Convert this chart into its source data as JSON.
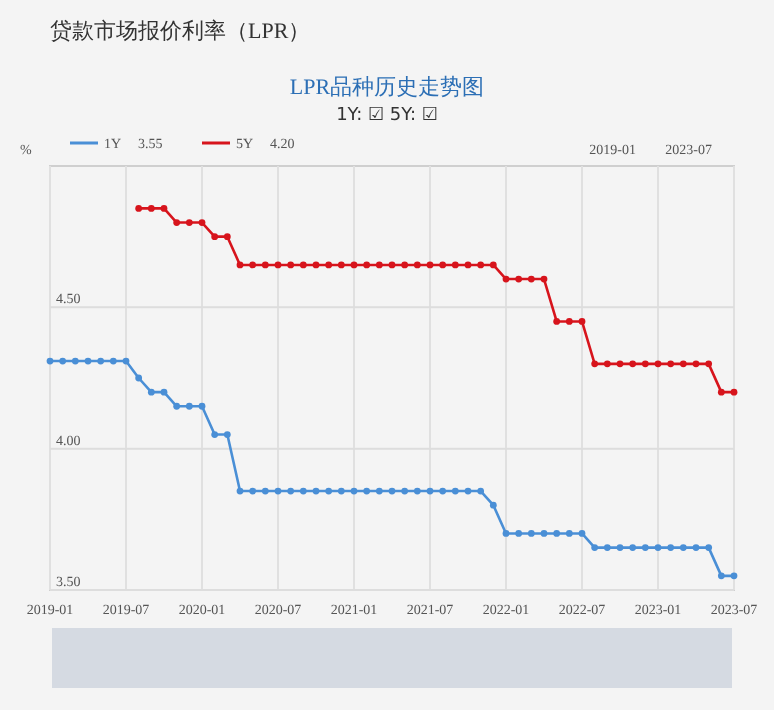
{
  "chart_data": {
    "type": "line",
    "title": "贷款市场报价利率（LPR）",
    "subtitle": "LPR品种历史走势图",
    "ylabel": "%",
    "annotations": [
      "1Y: ☑ 5Y: ☑",
      "3.55",
      "4.20",
      "2019-01",
      "2023-07"
    ],
    "x": [
      "2019-01",
      "2019-02",
      "2019-03",
      "2019-04",
      "2019-05",
      "2019-06",
      "2019-07",
      "2019-08",
      "2019-09",
      "2019-10",
      "2019-11",
      "2019-12",
      "2020-01",
      "2020-02",
      "2020-03",
      "2020-04",
      "2020-05",
      "2020-06",
      "2020-07",
      "2020-08",
      "2020-09",
      "2020-10",
      "2020-11",
      "2020-12",
      "2021-01",
      "2021-02",
      "2021-03",
      "2021-04",
      "2021-05",
      "2021-06",
      "2021-07",
      "2021-08",
      "2021-09",
      "2021-10",
      "2021-11",
      "2021-12",
      "2022-01",
      "2022-02",
      "2022-03",
      "2022-04",
      "2022-05",
      "2022-06",
      "2022-07",
      "2022-08",
      "2022-09",
      "2022-10",
      "2022-11",
      "2022-12",
      "2023-01",
      "2023-02",
      "2023-03",
      "2023-04",
      "2023-05",
      "2023-06",
      "2023-07"
    ],
    "series": [
      {
        "name": "1Y",
        "color": "#4a8fd6",
        "values": [
          4.31,
          4.31,
          4.31,
          4.31,
          4.31,
          4.31,
          4.31,
          4.25,
          4.2,
          4.2,
          4.15,
          4.15,
          4.15,
          4.05,
          4.05,
          3.85,
          3.85,
          3.85,
          3.85,
          3.85,
          3.85,
          3.85,
          3.85,
          3.85,
          3.85,
          3.85,
          3.85,
          3.85,
          3.85,
          3.85,
          3.85,
          3.85,
          3.85,
          3.85,
          3.85,
          3.8,
          3.7,
          3.7,
          3.7,
          3.7,
          3.7,
          3.7,
          3.7,
          3.65,
          3.65,
          3.65,
          3.65,
          3.65,
          3.65,
          3.65,
          3.65,
          3.65,
          3.65,
          3.55,
          3.55
        ]
      },
      {
        "name": "5Y",
        "color": "#d7141c",
        "values": [
          null,
          null,
          null,
          null,
          null,
          null,
          null,
          4.85,
          4.85,
          4.85,
          4.8,
          4.8,
          4.8,
          4.75,
          4.75,
          4.65,
          4.65,
          4.65,
          4.65,
          4.65,
          4.65,
          4.65,
          4.65,
          4.65,
          4.65,
          4.65,
          4.65,
          4.65,
          4.65,
          4.65,
          4.65,
          4.65,
          4.65,
          4.65,
          4.65,
          4.65,
          4.6,
          4.6,
          4.6,
          4.6,
          4.45,
          4.45,
          4.45,
          4.3,
          4.3,
          4.3,
          4.3,
          4.3,
          4.3,
          4.3,
          4.3,
          4.3,
          4.3,
          4.2,
          4.2
        ]
      }
    ],
    "xlim": [
      "2019-01",
      "2023-07"
    ],
    "xticks": [
      "2019-01",
      "2019-07",
      "2020-01",
      "2020-07",
      "2021-01",
      "2021-07",
      "2022-01",
      "2022-07",
      "2023-01",
      "2023-07"
    ],
    "ylim": [
      3.5,
      5.0
    ],
    "yticks": [
      {
        "value": 3.5,
        "label": "3.50"
      },
      {
        "value": 4.0,
        "label": "4.00"
      },
      {
        "value": 4.5,
        "label": "4.50"
      }
    ],
    "grid": true,
    "legend": "top left",
    "marker": "circle",
    "line_style": "solid"
  }
}
